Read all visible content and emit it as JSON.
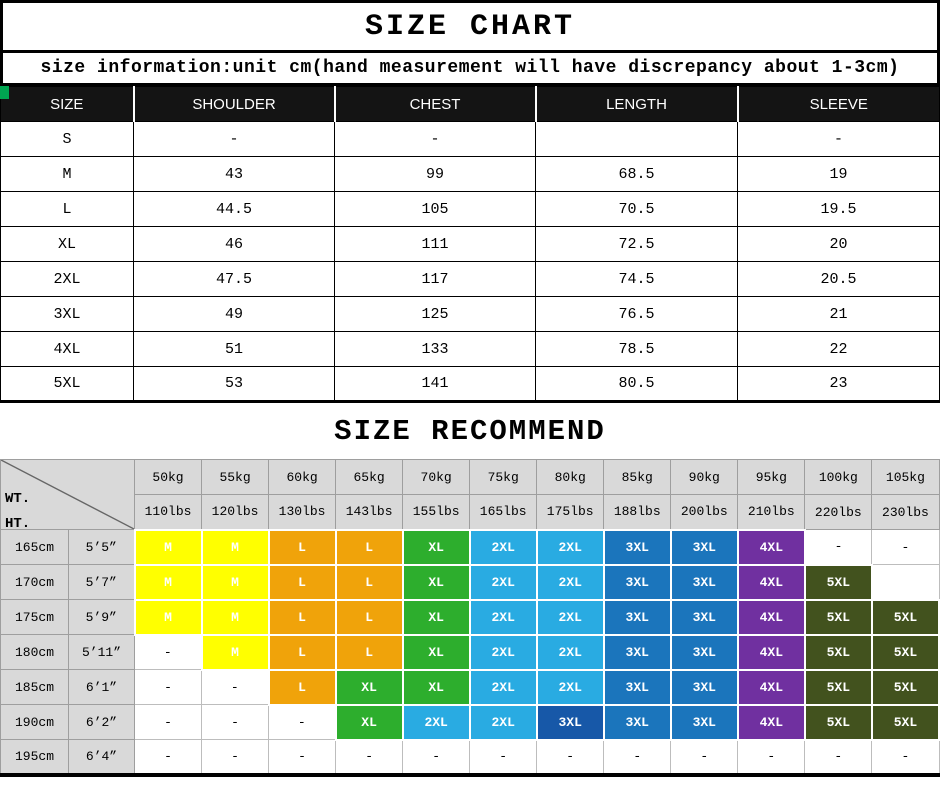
{
  "title": "SIZE CHART",
  "info": "size information:unit cm(hand measurement will have discrepancy about 1-3cm)",
  "recommend_title": "SIZE RECOMMEND",
  "size_table": {
    "headers": [
      "SIZE",
      "SHOULDER",
      "CHEST",
      "LENGTH",
      "SLEEVE"
    ],
    "rows": [
      [
        "S",
        "-",
        "-",
        "",
        "-"
      ],
      [
        "M",
        "43",
        "99",
        "68.5",
        "19"
      ],
      [
        "L",
        "44.5",
        "105",
        "70.5",
        "19.5"
      ],
      [
        "XL",
        "46",
        "111",
        "72.5",
        "20"
      ],
      [
        "2XL",
        "47.5",
        "117",
        "74.5",
        "20.5"
      ],
      [
        "3XL",
        "49",
        "125",
        "76.5",
        "21"
      ],
      [
        "4XL",
        "51",
        "133",
        "78.5",
        "22"
      ],
      [
        "5XL",
        "53",
        "141",
        "80.5",
        "23"
      ]
    ]
  },
  "recommend_table": {
    "corner": {
      "weight_label": "WT.",
      "height_label": "HT."
    },
    "weights_kg": [
      "50kg",
      "55kg",
      "60kg",
      "65kg",
      "70kg",
      "75kg",
      "80kg",
      "85kg",
      "90kg",
      "95kg",
      "100kg",
      "105kg"
    ],
    "weights_lbs": [
      "110lbs",
      "120lbs",
      "130lbs",
      "143lbs",
      "155lbs",
      "165lbs",
      "175lbs",
      "188lbs",
      "200lbs",
      "210lbs",
      "220lbs",
      "230lbs"
    ],
    "rows": [
      {
        "height_cm": "165cm",
        "height_ft": "5’5”",
        "cells": [
          {
            "t": "M",
            "c": "yellow"
          },
          {
            "t": "M",
            "c": "yellow"
          },
          {
            "t": "L",
            "c": "orange"
          },
          {
            "t": "L",
            "c": "orange"
          },
          {
            "t": "XL",
            "c": "green"
          },
          {
            "t": "2XL",
            "c": "cyan"
          },
          {
            "t": "2XL",
            "c": "cyan"
          },
          {
            "t": "3XL",
            "c": "blue"
          },
          {
            "t": "3XL",
            "c": "blue"
          },
          {
            "t": "4XL",
            "c": "purple"
          },
          {
            "t": "-",
            "c": ""
          },
          {
            "t": "-",
            "c": ""
          }
        ]
      },
      {
        "height_cm": "170cm",
        "height_ft": "5’7”",
        "cells": [
          {
            "t": "M",
            "c": "yellow"
          },
          {
            "t": "M",
            "c": "yellow"
          },
          {
            "t": "L",
            "c": "orange"
          },
          {
            "t": "L",
            "c": "orange"
          },
          {
            "t": "XL",
            "c": "green"
          },
          {
            "t": "2XL",
            "c": "cyan"
          },
          {
            "t": "2XL",
            "c": "cyan"
          },
          {
            "t": "3XL",
            "c": "blue"
          },
          {
            "t": "3XL",
            "c": "blue"
          },
          {
            "t": "4XL",
            "c": "purple"
          },
          {
            "t": "5XL",
            "c": "olive"
          },
          {
            "t": "",
            "c": ""
          }
        ]
      },
      {
        "height_cm": "175cm",
        "height_ft": "5’9”",
        "cells": [
          {
            "t": "M",
            "c": "yellow"
          },
          {
            "t": "M",
            "c": "yellow"
          },
          {
            "t": "L",
            "c": "orange"
          },
          {
            "t": "L",
            "c": "orange"
          },
          {
            "t": "XL",
            "c": "green"
          },
          {
            "t": "2XL",
            "c": "cyan"
          },
          {
            "t": "2XL",
            "c": "cyan"
          },
          {
            "t": "3XL",
            "c": "blue"
          },
          {
            "t": "3XL",
            "c": "blue"
          },
          {
            "t": "4XL",
            "c": "purple"
          },
          {
            "t": "5XL",
            "c": "olive"
          },
          {
            "t": "5XL",
            "c": "olive"
          }
        ]
      },
      {
        "height_cm": "180cm",
        "height_ft": "5’11”",
        "cells": [
          {
            "t": "-",
            "c": ""
          },
          {
            "t": "M",
            "c": "yellow"
          },
          {
            "t": "L",
            "c": "orange"
          },
          {
            "t": "L",
            "c": "orange"
          },
          {
            "t": "XL",
            "c": "green"
          },
          {
            "t": "2XL",
            "c": "cyan"
          },
          {
            "t": "2XL",
            "c": "cyan"
          },
          {
            "t": "3XL",
            "c": "blue"
          },
          {
            "t": "3XL",
            "c": "blue"
          },
          {
            "t": "4XL",
            "c": "purple"
          },
          {
            "t": "5XL",
            "c": "olive"
          },
          {
            "t": "5XL",
            "c": "olive"
          }
        ]
      },
      {
        "height_cm": "185cm",
        "height_ft": "6’1”",
        "cells": [
          {
            "t": "-",
            "c": ""
          },
          {
            "t": "-",
            "c": ""
          },
          {
            "t": "L",
            "c": "orange"
          },
          {
            "t": "XL",
            "c": "green"
          },
          {
            "t": "XL",
            "c": "green"
          },
          {
            "t": "2XL",
            "c": "cyan"
          },
          {
            "t": "2XL",
            "c": "cyan"
          },
          {
            "t": "3XL",
            "c": "blue"
          },
          {
            "t": "3XL",
            "c": "blue"
          },
          {
            "t": "4XL",
            "c": "purple"
          },
          {
            "t": "5XL",
            "c": "olive"
          },
          {
            "t": "5XL",
            "c": "olive"
          }
        ]
      },
      {
        "height_cm": "190cm",
        "height_ft": "6’2”",
        "cells": [
          {
            "t": "-",
            "c": ""
          },
          {
            "t": "-",
            "c": ""
          },
          {
            "t": "-",
            "c": ""
          },
          {
            "t": "XL",
            "c": "green"
          },
          {
            "t": "2XL",
            "c": "cyan"
          },
          {
            "t": "2XL",
            "c": "cyan"
          },
          {
            "t": "3XL",
            "c": "navy"
          },
          {
            "t": "3XL",
            "c": "blue"
          },
          {
            "t": "3XL",
            "c": "blue"
          },
          {
            "t": "4XL",
            "c": "purple"
          },
          {
            "t": "5XL",
            "c": "olive"
          },
          {
            "t": "5XL",
            "c": "olive"
          }
        ]
      },
      {
        "height_cm": "195cm",
        "height_ft": "6’4”",
        "cells": [
          {
            "t": "-",
            "c": ""
          },
          {
            "t": "-",
            "c": ""
          },
          {
            "t": "-",
            "c": ""
          },
          {
            "t": "-",
            "c": ""
          },
          {
            "t": "-",
            "c": ""
          },
          {
            "t": "-",
            "c": ""
          },
          {
            "t": "-",
            "c": ""
          },
          {
            "t": "-",
            "c": ""
          },
          {
            "t": "-",
            "c": ""
          },
          {
            "t": "-",
            "c": ""
          },
          {
            "t": "-",
            "c": ""
          },
          {
            "t": "-",
            "c": ""
          }
        ]
      }
    ]
  },
  "colors": {
    "yellow": "#FFFF00",
    "orange": "#F0A30A",
    "green": "#2DAE2D",
    "cyan": "#29ABE2",
    "blue": "#1B75BC",
    "navy": "#1758A8",
    "purple": "#7030A0",
    "olive": "#42521E",
    "header_bg": "#D9D9D9",
    "green_mark": "#00A651"
  }
}
